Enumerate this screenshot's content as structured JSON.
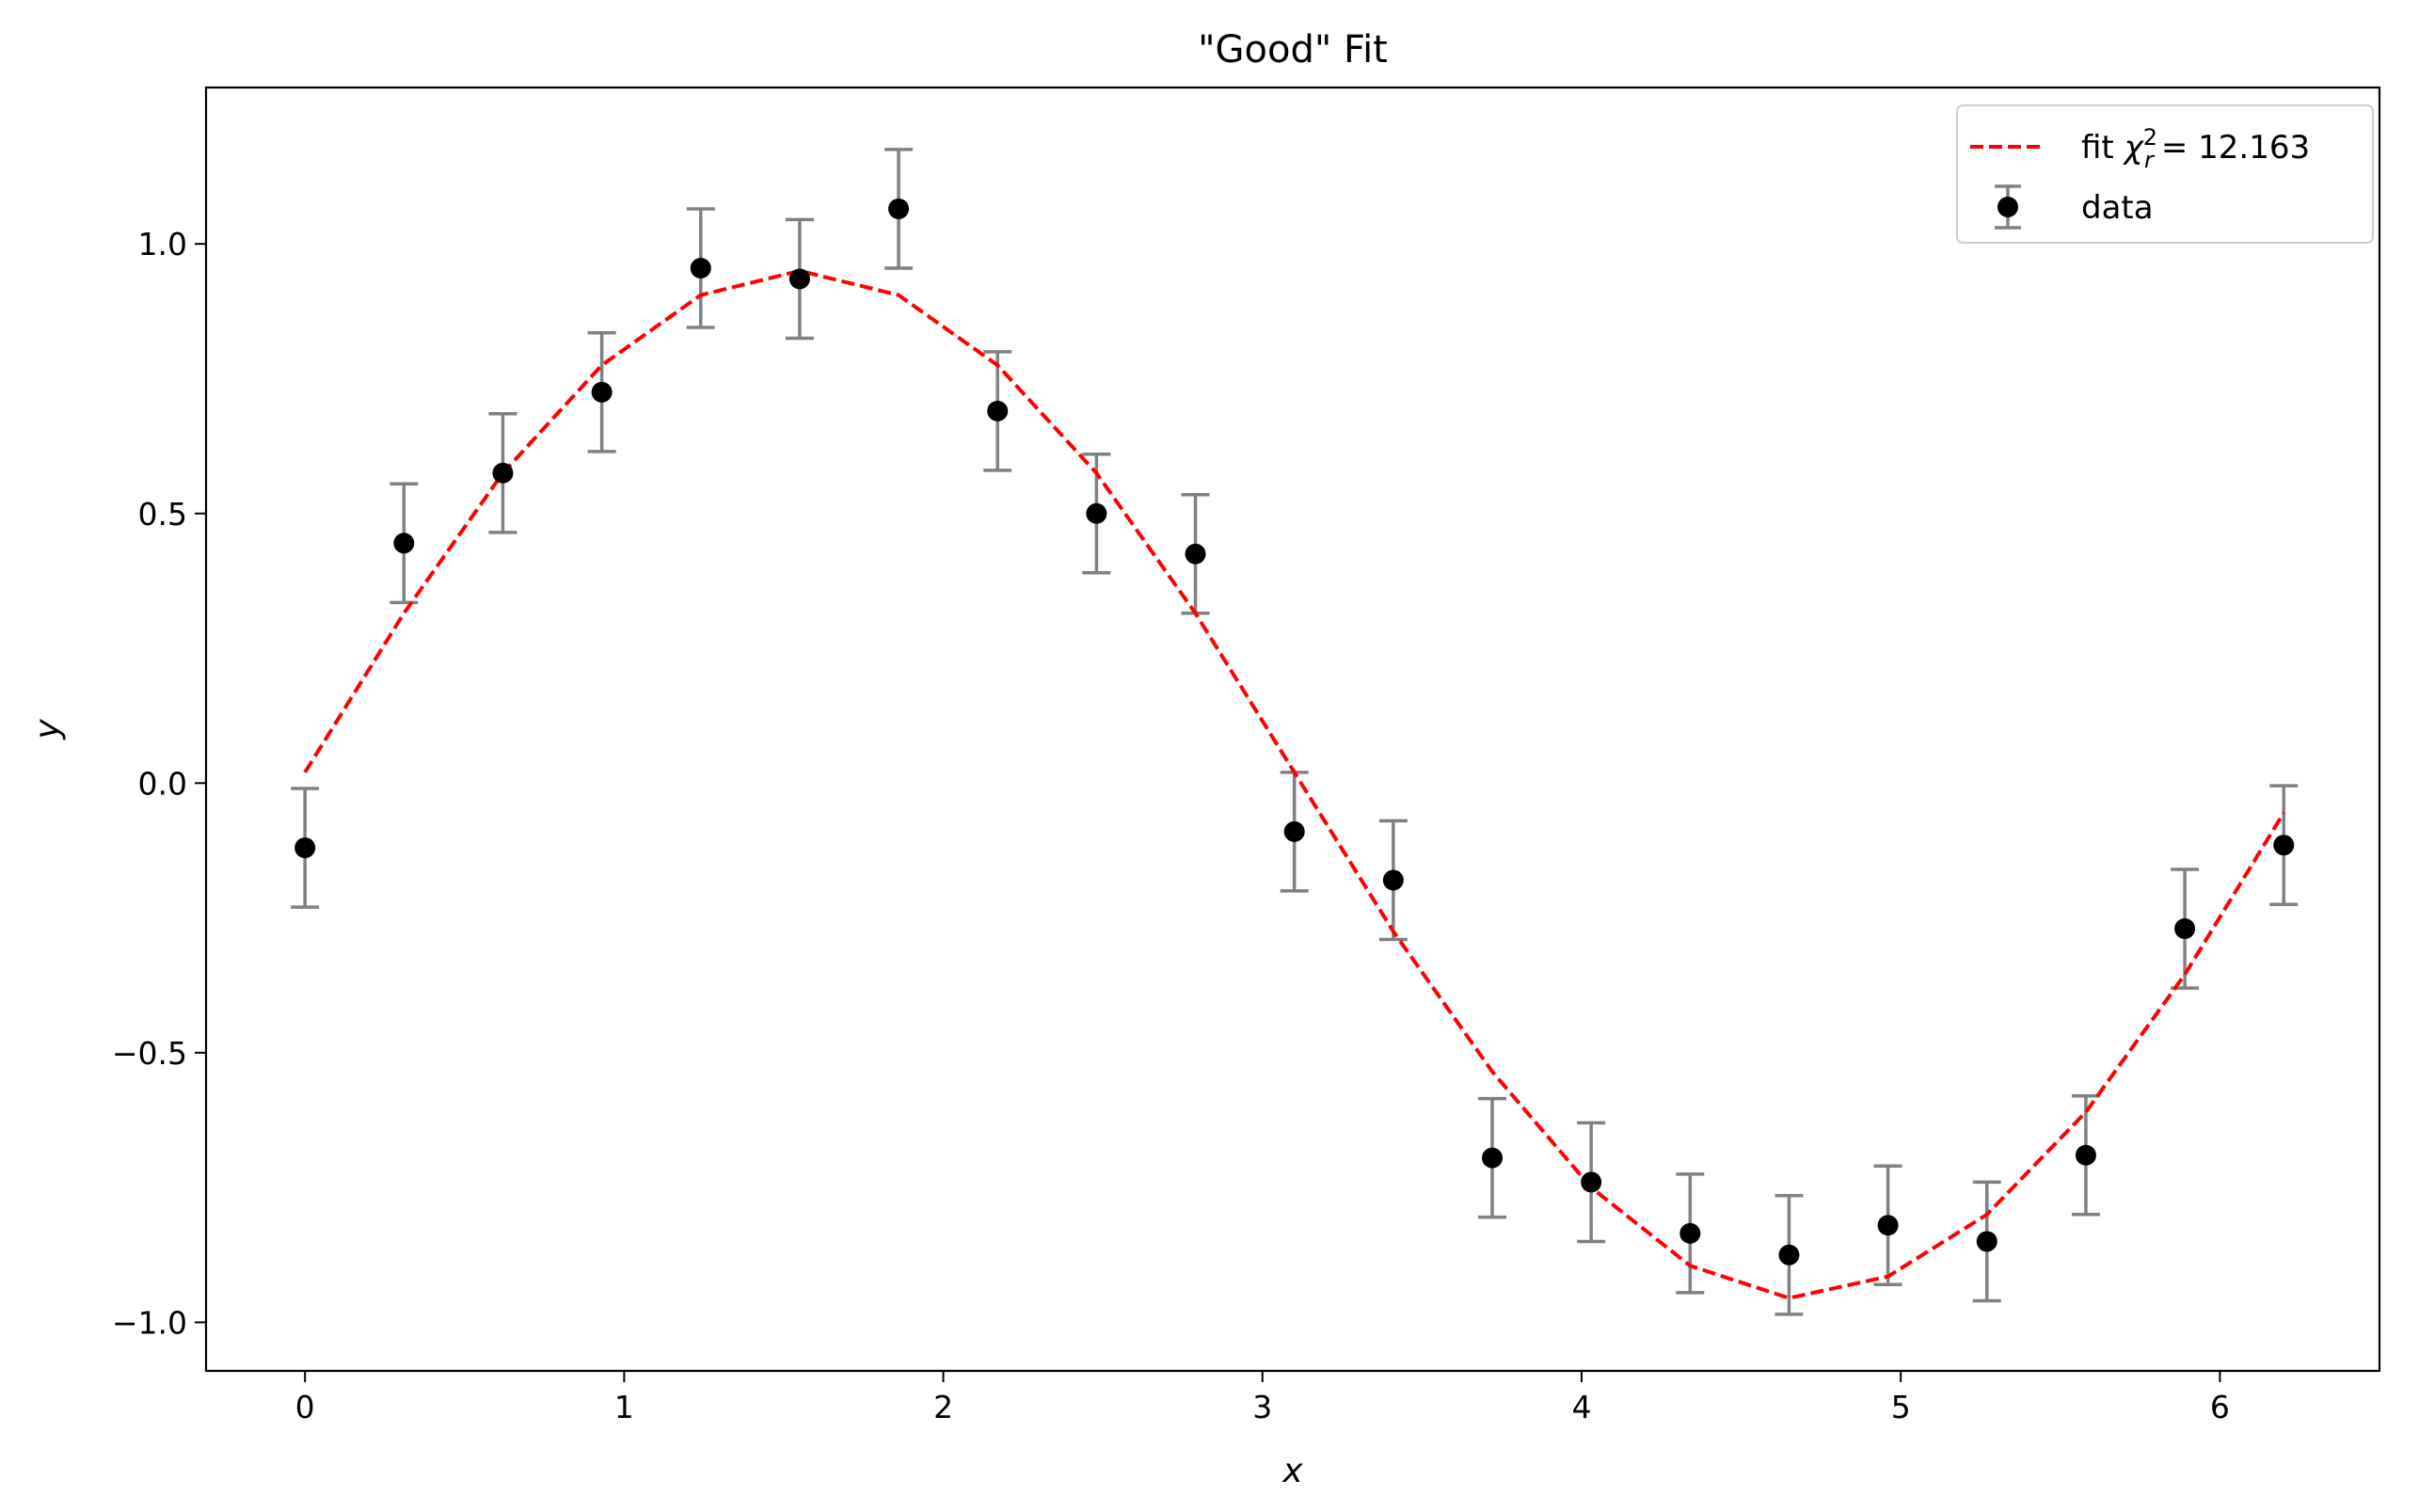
{
  "chart_data": {
    "type": "scatter",
    "title": "\"Good\" Fit",
    "xlabel": "x",
    "ylabel": "y",
    "xlim": [
      -0.31,
      6.5
    ],
    "ylim": [
      -1.09,
      1.29
    ],
    "xticks": [
      0,
      1,
      2,
      3,
      4,
      5,
      6
    ],
    "xtick_labels": [
      "0",
      "1",
      "2",
      "3",
      "4",
      "5",
      "6"
    ],
    "yticks": [
      -1.0,
      -0.5,
      0.0,
      0.5,
      1.0
    ],
    "ytick_labels": [
      "−1.0",
      "−0.5",
      "0.0",
      "0.5",
      "1.0"
    ],
    "grid": false,
    "legend_position": "top-right",
    "series": [
      {
        "name": "data",
        "kind": "errorbar-scatter",
        "color": "#000000",
        "errorbar_color": "#808080",
        "x": [
          0.0,
          0.31,
          0.62,
          0.93,
          1.24,
          1.55,
          1.86,
          2.17,
          2.48,
          2.79,
          3.1,
          3.41,
          3.72,
          4.03,
          4.34,
          4.65,
          4.96,
          5.27,
          5.58,
          5.89,
          6.2
        ],
        "y": [
          -0.12,
          0.445,
          0.575,
          0.725,
          0.955,
          0.935,
          1.065,
          0.69,
          0.5,
          0.425,
          -0.09,
          -0.18,
          -0.695,
          -0.74,
          -0.835,
          -0.875,
          -0.82,
          -0.85,
          -0.69,
          -0.27,
          -0.115
        ],
        "yerr": 0.11
      },
      {
        "name": "fit",
        "legend_text": "fit χ² = 12.163",
        "legend_symbol": "χ",
        "legend_sup": "2",
        "legend_sub": "r",
        "legend_value": "= 12.163",
        "kind": "dashed-line",
        "color": "#ff0000",
        "x": [
          0.0,
          0.31,
          0.62,
          0.93,
          1.24,
          1.55,
          1.86,
          2.17,
          2.48,
          2.79,
          3.1,
          3.41,
          3.72,
          4.03,
          4.34,
          4.65,
          4.96,
          5.27,
          5.58,
          5.89,
          6.2
        ],
        "y": [
          0.02,
          0.315,
          0.575,
          0.775,
          0.905,
          0.95,
          0.905,
          0.775,
          0.575,
          0.315,
          0.02,
          -0.275,
          -0.535,
          -0.75,
          -0.895,
          -0.955,
          -0.915,
          -0.8,
          -0.61,
          -0.355,
          -0.055
        ]
      }
    ]
  }
}
